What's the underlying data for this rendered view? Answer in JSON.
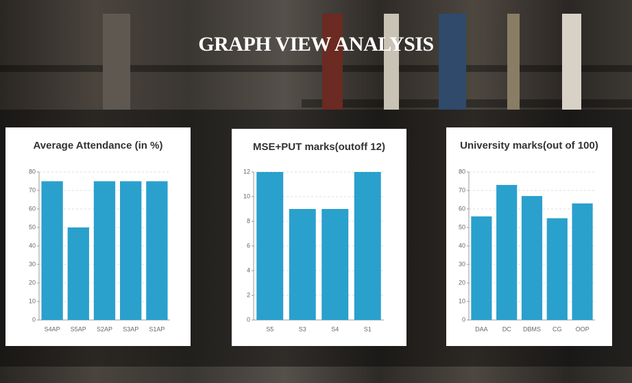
{
  "header": {
    "title": "GRAPH VIEW ANALYSIS"
  },
  "chart_data": [
    {
      "type": "bar",
      "title": "Average Attendance (in %)",
      "categories": [
        "S4AP",
        "S5AP",
        "S2AP",
        "S3AP",
        "S1AP"
      ],
      "values": [
        75,
        50,
        75,
        75,
        75
      ],
      "color": "#2aa0cd",
      "ylim": [
        0,
        80
      ],
      "yticks": [
        0,
        10,
        20,
        30,
        40,
        50,
        60,
        70,
        80
      ],
      "grid": true
    },
    {
      "type": "bar",
      "title": "MSE+PUT marks(outoff 12)",
      "categories": [
        "S5",
        "S3",
        "S4",
        "S1"
      ],
      "values": [
        12,
        9,
        9,
        12
      ],
      "color": "#2aa0cd",
      "ylim": [
        0,
        12
      ],
      "yticks": [
        0,
        2,
        4,
        6,
        8,
        10,
        12
      ],
      "grid": true
    },
    {
      "type": "bar",
      "title": "University marks(out of 100)",
      "categories": [
        "DAA",
        "DC",
        "DBMS",
        "CG",
        "OOP"
      ],
      "values": [
        56,
        73,
        67,
        55,
        63
      ],
      "color": "#2aa0cd",
      "ylim": [
        0,
        80
      ],
      "yticks": [
        0,
        10,
        20,
        30,
        40,
        50,
        60,
        70,
        80
      ],
      "grid": true
    }
  ]
}
